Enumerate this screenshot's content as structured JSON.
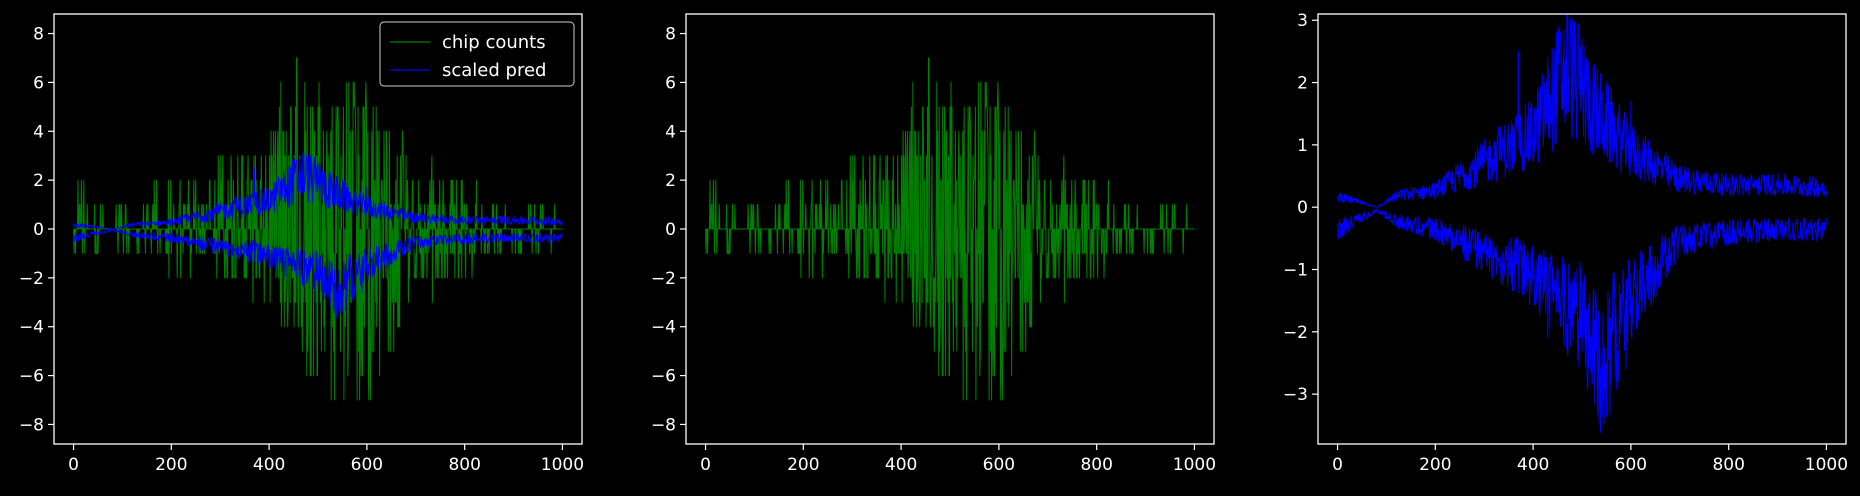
{
  "colors": {
    "background": "#000000",
    "axes": "#ffffff",
    "chip_counts": "#008000",
    "scaled_pred": "#0000ff"
  },
  "chart_data": [
    {
      "type": "line",
      "xlim": [
        -40,
        1040
      ],
      "ylim": [
        -8.8,
        8.8
      ],
      "xticks": [
        0,
        200,
        400,
        600,
        800,
        1000
      ],
      "yticks": [
        -8,
        -6,
        -4,
        -2,
        0,
        2,
        4,
        6,
        8
      ],
      "grid": false,
      "legend": {
        "placement": "top-right",
        "entries": [
          "chip counts",
          "scaled pred"
        ]
      },
      "series": [
        {
          "name": "chip counts",
          "color": "#008000",
          "x_range": [
            0,
            1000
          ],
          "description": "integer-valued noisy counts, mostly 0, envelope peaking near x≈450-600",
          "envelope_keypoints": [
            [
              0,
              2
            ],
            [
              100,
              1
            ],
            [
              200,
              2
            ],
            [
              300,
              3
            ],
            [
              400,
              4
            ],
            [
              450,
              8
            ],
            [
              500,
              6
            ],
            [
              600,
              6
            ],
            [
              700,
              3
            ],
            [
              800,
              2
            ],
            [
              900,
              1
            ],
            [
              1000,
              1
            ]
          ],
          "lower_envelope_keypoints": [
            [
              0,
              -1
            ],
            [
              100,
              -1
            ],
            [
              200,
              -2
            ],
            [
              300,
              -2
            ],
            [
              400,
              -3
            ],
            [
              500,
              -7
            ],
            [
              590,
              -8
            ],
            [
              700,
              -3
            ],
            [
              800,
              -2
            ],
            [
              900,
              -1
            ],
            [
              1000,
              -1
            ]
          ]
        },
        {
          "name": "scaled pred",
          "color": "#0000ff",
          "x_range": [
            0,
            1000
          ],
          "description": "two bands (positive and negative) mirroring third panel",
          "upper_band_keypoints": [
            [
              0,
              0.2
            ],
            [
              80,
              0
            ],
            [
              120,
              0.2
            ],
            [
              200,
              0.3
            ],
            [
              300,
              0.8
            ],
            [
              400,
              1.3
            ],
            [
              470,
              2.5
            ],
            [
              520,
              1.8
            ],
            [
              600,
              1.0
            ],
            [
              700,
              0.5
            ],
            [
              800,
              0.4
            ],
            [
              900,
              0.4
            ],
            [
              1000,
              0.35
            ]
          ],
          "lower_band_keypoints": [
            [
              0,
              -0.4
            ],
            [
              80,
              -0.05
            ],
            [
              120,
              -0.25
            ],
            [
              200,
              -0.4
            ],
            [
              300,
              -0.8
            ],
            [
              400,
              -1.2
            ],
            [
              500,
              -2.0
            ],
            [
              540,
              -2.8
            ],
            [
              600,
              -1.6
            ],
            [
              700,
              -0.6
            ],
            [
              800,
              -0.45
            ],
            [
              900,
              -0.4
            ],
            [
              1000,
              -0.4
            ]
          ]
        }
      ]
    },
    {
      "type": "line",
      "xlim": [
        -40,
        1040
      ],
      "ylim": [
        -8.8,
        8.8
      ],
      "xticks": [
        0,
        200,
        400,
        600,
        800,
        1000
      ],
      "yticks": [
        -8,
        -6,
        -4,
        -2,
        0,
        2,
        4,
        6,
        8
      ],
      "grid": false,
      "series": [
        {
          "color": "#008000",
          "ref": "chip counts"
        }
      ]
    },
    {
      "type": "line",
      "xlim": [
        -40,
        1040
      ],
      "ylim": [
        -3.8,
        3.1
      ],
      "xticks": [
        0,
        200,
        400,
        600,
        800,
        1000
      ],
      "yticks": [
        -3,
        -2,
        -1,
        0,
        1,
        2,
        3
      ],
      "grid": false,
      "series": [
        {
          "color": "#0000ff",
          "ref": "scaled pred",
          "scale": 1
        }
      ]
    }
  ]
}
